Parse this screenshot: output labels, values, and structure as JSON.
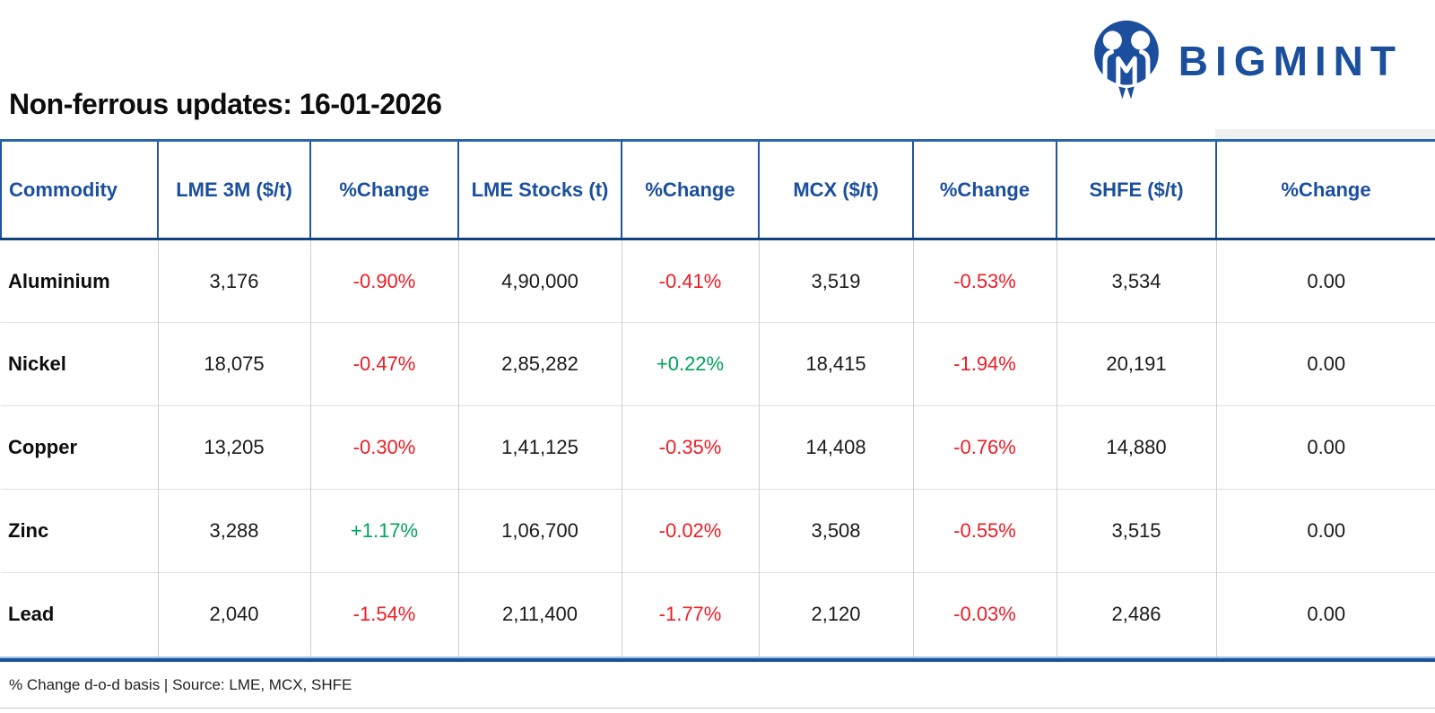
{
  "brand": {
    "name": "BIGMINT",
    "logo_icon": "two-people-m-circle",
    "brand_color": "#1B4F9E"
  },
  "title": "Non-ferrous updates: 16-01-2026",
  "footer": {
    "note": "% Change d-o-d basis | Source: LME, MCX, SHFE"
  },
  "colors": {
    "header_text_blue": "#1B4F9E",
    "border_blue_top": "#2765B0",
    "border_blue_dark": "#12407E",
    "bottom_rule_blue": "#1C5299",
    "negative_red": "#EE1C25",
    "positive_green": "#00A35A",
    "grid_gray": "#CFCFCF"
  },
  "table": {
    "columns": [
      "Commodity",
      "LME 3M ($/t)",
      "%Change",
      "LME Stocks (t)",
      "%Change",
      "MCX ($/t)",
      "%Change",
      "SHFE ($/t)",
      "%Change"
    ],
    "rows": [
      {
        "commodity": "Aluminium",
        "values": [
          "3,176",
          "-0.90%",
          "4,90,000",
          "-0.41%",
          "3,519",
          "-0.53%",
          "3,534",
          "0.00"
        ],
        "trends": [
          "n",
          "down",
          "n",
          "down",
          "n",
          "down",
          "n",
          "n"
        ]
      },
      {
        "commodity": "Nickel",
        "values": [
          "18,075",
          "-0.47%",
          "2,85,282",
          "+0.22%",
          "18,415",
          "-1.94%",
          "20,191",
          "0.00"
        ],
        "trends": [
          "n",
          "down",
          "n",
          "up",
          "n",
          "down",
          "n",
          "n"
        ]
      },
      {
        "commodity": "Copper",
        "values": [
          "13,205",
          "-0.30%",
          "1,41,125",
          "-0.35%",
          "14,408",
          "-0.76%",
          "14,880",
          "0.00"
        ],
        "trends": [
          "n",
          "down",
          "n",
          "down",
          "n",
          "down",
          "n",
          "n"
        ]
      },
      {
        "commodity": "Zinc",
        "values": [
          "3,288",
          "+1.17%",
          "1,06,700",
          "-0.02%",
          "3,508",
          "-0.55%",
          "3,515",
          "0.00"
        ],
        "trends": [
          "n",
          "up",
          "n",
          "down",
          "n",
          "down",
          "n",
          "n"
        ]
      },
      {
        "commodity": "Lead",
        "values": [
          "2,040",
          "-1.54%",
          "2,11,400",
          "-1.77%",
          "2,120",
          "-0.03%",
          "2,486",
          "0.00"
        ],
        "trends": [
          "n",
          "down",
          "n",
          "down",
          "n",
          "down",
          "n",
          "n"
        ]
      }
    ]
  },
  "chart_data": {
    "type": "table",
    "title": "Non-ferrous updates: 16-01-2026",
    "columns": [
      "Commodity",
      "LME 3M ($/t)",
      "%Change",
      "LME Stocks (t)",
      "%Change",
      "MCX ($/t)",
      "%Change",
      "SHFE ($/t)",
      "%Change"
    ],
    "rows": [
      [
        "Aluminium",
        3176,
        "-0.90%",
        490000,
        "-0.41%",
        3519,
        "-0.53%",
        3534,
        "0.00"
      ],
      [
        "Nickel",
        18075,
        "-0.47%",
        285282,
        "+0.22%",
        18415,
        "-1.94%",
        20191,
        "0.00"
      ],
      [
        "Copper",
        13205,
        "-0.30%",
        141125,
        "-0.35%",
        14408,
        "-0.76%",
        14880,
        "0.00"
      ],
      [
        "Zinc",
        3288,
        "+1.17%",
        106700,
        "-0.02%",
        3508,
        "-0.55%",
        3515,
        "0.00"
      ],
      [
        "Lead",
        2040,
        "-1.54%",
        211400,
        "-1.77%",
        2120,
        "-0.03%",
        2486,
        "0.00"
      ]
    ],
    "notes": "% Change d-o-d basis | Source: LME, MCX, SHFE",
    "negative_color": "#EE1C25",
    "positive_color": "#00A35A"
  }
}
